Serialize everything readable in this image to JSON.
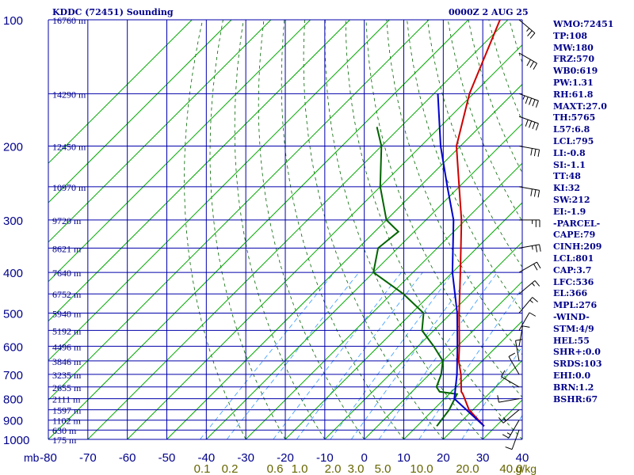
{
  "header": {
    "station": "KDDC (72451) Sounding",
    "time": "0000Z  2 AUG 25"
  },
  "indices": [
    "WMO:72451",
    "TP:108",
    "MW:180",
    "FRZ:570",
    "WB0:619",
    "PW:1.31",
    "RH:61.8",
    "MAXT:27.0",
    "TH:5765",
    "L57:6.8",
    "LCL:795",
    "LI:-0.8",
    "SI:-1.1",
    "TT:48",
    "KI:32",
    "SW:212",
    "EI:-1.9",
    "-PARCEL-",
    "CAPE:79",
    "CINH:209",
    "LCL:801",
    "CAP:3.7",
    "LFC:536",
    "EL:366",
    "MPL:276",
    "-WIND-",
    "STM:4/9",
    "HEL:55",
    "SHR+:0.0",
    "SRDS:103",
    "EHI:0.0",
    "BRN:1.2",
    "BSHR:67"
  ],
  "chart_data": {
    "type": "line",
    "title": "KDDC (72451) Sounding",
    "xlim": [
      -80,
      40
    ],
    "ylim": [
      1000,
      100
    ],
    "y_scale": "log-pressure",
    "x_unit": "mb",
    "xticks": [
      "-80",
      "-70",
      "-60",
      "-50",
      "-40",
      "-30",
      "-20",
      "-10",
      "0",
      "10",
      "20",
      "30",
      "40"
    ],
    "xunit_label": "mb",
    "pressure_ticks": [
      "100",
      "200",
      "300",
      "400",
      "500",
      "600",
      "700",
      "800",
      "900",
      "1000"
    ],
    "mixing_ratio_ticks": [
      "0.1",
      "0.2",
      "0.6",
      "1.0",
      "2.0",
      "3.0",
      "5.0",
      "10.0",
      "20.0",
      "40.0"
    ],
    "mixing_ratio_unit": "g/kg",
    "height_labels": [
      {
        "p": 100,
        "h": "16760 m"
      },
      {
        "p": 150,
        "h": "14290 m"
      },
      {
        "p": 200,
        "h": "12450 m"
      },
      {
        "p": 250,
        "h": "10970 m"
      },
      {
        "p": 300,
        "h": "9720 m"
      },
      {
        "p": 350,
        "h": "8621 m"
      },
      {
        "p": 400,
        "h": "7640 m"
      },
      {
        "p": 450,
        "h": "6752 m"
      },
      {
        "p": 500,
        "h": "5940 m"
      },
      {
        "p": 550,
        "h": "5192 m"
      },
      {
        "p": 600,
        "h": "4496 m"
      },
      {
        "p": 650,
        "h": "3846 m"
      },
      {
        "p": 700,
        "h": "3235 m"
      },
      {
        "p": 750,
        "h": "2655 m"
      },
      {
        "p": 800,
        "h": "2111 m"
      },
      {
        "p": 850,
        "h": "1597 m"
      },
      {
        "p": 900,
        "h": "1102 m"
      },
      {
        "p": 950,
        "h": "630 m"
      },
      {
        "p": 1000,
        "h": "175 m"
      }
    ],
    "series": [
      {
        "values": [
          [
            930,
            27.0
          ],
          [
            850,
            19.0
          ],
          [
            780,
            13.5
          ],
          [
            770,
            12.5
          ],
          [
            700,
            8.0
          ],
          [
            650,
            4.0
          ],
          [
            600,
            0.5
          ],
          [
            500,
            -8.0
          ],
          [
            400,
            -18.0
          ],
          [
            300,
            -31.0
          ],
          [
            250,
            -40.0
          ],
          [
            200,
            -51.0
          ],
          [
            150,
            -61.0
          ],
          [
            100,
            -72.0
          ]
        ]
      },
      {
        "values": [
          [
            930,
            15.0
          ],
          [
            850,
            14.0
          ],
          [
            780,
            12.0
          ],
          [
            770,
            7.0
          ],
          [
            750,
            5.0
          ],
          [
            700,
            3.0
          ],
          [
            650,
            0.0
          ],
          [
            600,
            -6.0
          ],
          [
            550,
            -13.0
          ],
          [
            500,
            -17.0
          ],
          [
            450,
            -27.0
          ],
          [
            400,
            -40.0
          ],
          [
            350,
            -45.0
          ],
          [
            320,
            -44.0
          ],
          [
            300,
            -50.0
          ],
          [
            250,
            -60.0
          ],
          [
            200,
            -70.0
          ],
          [
            180,
            -76.0
          ]
        ]
      },
      {
        "values": [
          [
            930,
            27.0
          ],
          [
            800,
            12.5
          ],
          [
            700,
            7.0
          ],
          [
            600,
            0.0
          ],
          [
            500,
            -8.5
          ],
          [
            400,
            -20.0
          ],
          [
            300,
            -33.0
          ],
          [
            250,
            -43.0
          ],
          [
            200,
            -55.0
          ],
          [
            150,
            -69.0
          ]
        ]
      }
    ],
    "wind_barbs": [
      {
        "p": 100,
        "dir": 230,
        "spd": 25
      },
      {
        "p": 120,
        "dir": 240,
        "spd": 30
      },
      {
        "p": 150,
        "dir": 250,
        "spd": 45
      },
      {
        "p": 170,
        "dir": 250,
        "spd": 40
      },
      {
        "p": 200,
        "dir": 260,
        "spd": 30
      },
      {
        "p": 250,
        "dir": 260,
        "spd": 30
      },
      {
        "p": 300,
        "dir": 270,
        "spd": 25
      },
      {
        "p": 350,
        "dir": 280,
        "spd": 25
      },
      {
        "p": 400,
        "dir": 300,
        "spd": 20
      },
      {
        "p": 450,
        "dir": 310,
        "spd": 15
      },
      {
        "p": 500,
        "dir": 320,
        "spd": 15
      },
      {
        "p": 550,
        "dir": 330,
        "spd": 10
      },
      {
        "p": 600,
        "dir": 350,
        "spd": 10
      },
      {
        "p": 650,
        "dir": 10,
        "spd": 10
      },
      {
        "p": 700,
        "dir": 30,
        "spd": 10
      },
      {
        "p": 750,
        "dir": 60,
        "spd": 10
      },
      {
        "p": 800,
        "dir": 100,
        "spd": 10
      },
      {
        "p": 850,
        "dir": 130,
        "spd": 15
      },
      {
        "p": 900,
        "dir": 150,
        "spd": 15
      },
      {
        "p": 950,
        "dir": 160,
        "spd": 10
      }
    ],
    "colors": {
      "grid": "#0000aa",
      "isotherm": "#00aa00",
      "dry_adiabat": "#006400",
      "mixing": "#3399ff",
      "temperature": "#cc0000",
      "dewpoint": "#006400",
      "parcel": "#0000cc",
      "text": "#00008b",
      "mixing_text": "#666600"
    }
  }
}
